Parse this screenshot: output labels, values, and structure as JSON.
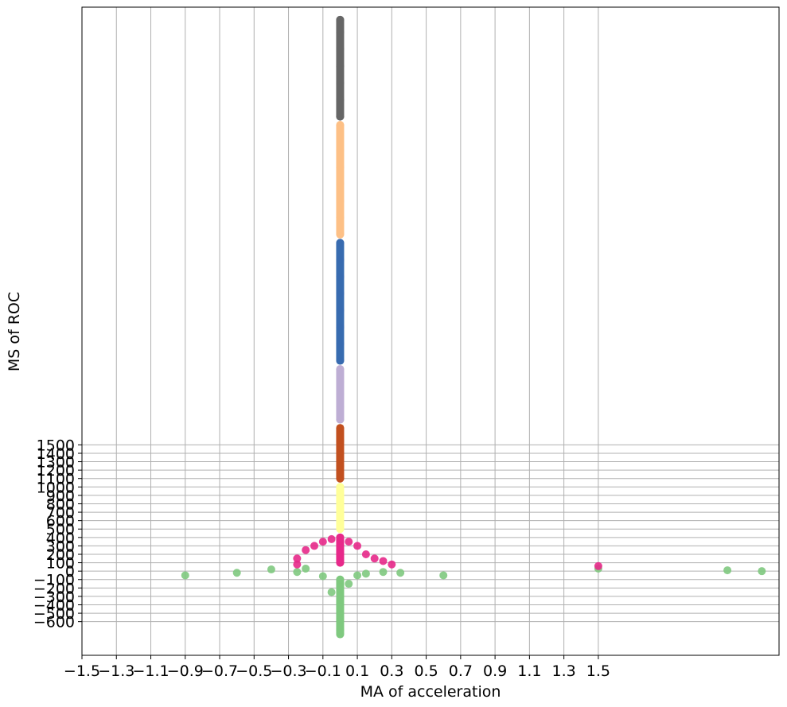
{
  "chart_data": {
    "type": "scatter",
    "title": "",
    "xlabel": "MA of acceleration",
    "ylabel": "MS of ROC",
    "xlim": [
      -1.5,
      2.55
    ],
    "ylim": [
      -1000,
      6700
    ],
    "grid": true,
    "x_ticks": [
      {
        "value": -1.5,
        "label": "−1.5"
      },
      {
        "value": -1.3,
        "label": "−1.3"
      },
      {
        "value": -1.1,
        "label": "−1.1"
      },
      {
        "value": -0.9,
        "label": "−0.9"
      },
      {
        "value": -0.7,
        "label": "−0.7"
      },
      {
        "value": -0.5,
        "label": "−0.5"
      },
      {
        "value": -0.3,
        "label": "−0.3"
      },
      {
        "value": -0.1,
        "label": "−0.1"
      },
      {
        "value": 0.1,
        "label": "0.1"
      },
      {
        "value": 0.3,
        "label": "0.3"
      },
      {
        "value": 0.5,
        "label": "0.5"
      },
      {
        "value": 0.7,
        "label": "0.7"
      },
      {
        "value": 0.9,
        "label": "0.9"
      },
      {
        "value": 1.1,
        "label": "1.1"
      },
      {
        "value": 1.3,
        "label": "1.3"
      },
      {
        "value": 1.5,
        "label": "1.5"
      }
    ],
    "y_ticks": [
      {
        "value": 1500,
        "label": "1500"
      },
      {
        "value": 1400,
        "label": "1400"
      },
      {
        "value": 1300,
        "label": "1300"
      },
      {
        "value": 1200,
        "label": "1200"
      },
      {
        "value": 1100,
        "label": "1100"
      },
      {
        "value": 1000,
        "label": "1000"
      },
      {
        "value": 900,
        "label": "900"
      },
      {
        "value": 800,
        "label": "800"
      },
      {
        "value": 700,
        "label": "700"
      },
      {
        "value": 600,
        "label": "600"
      },
      {
        "value": 500,
        "label": "500"
      },
      {
        "value": 400,
        "label": "400"
      },
      {
        "value": 300,
        "label": "300"
      },
      {
        "value": 200,
        "label": "200"
      },
      {
        "value": 100,
        "label": "100"
      },
      {
        "value": 0,
        "label": "0"
      },
      {
        "value": -100,
        "label": "−100"
      },
      {
        "value": -200,
        "label": "−200"
      },
      {
        "value": -300,
        "label": "−300"
      },
      {
        "value": -400,
        "label": "−400"
      },
      {
        "value": -500,
        "label": "−500"
      },
      {
        "value": -600,
        "label": "−600"
      }
    ],
    "series": [
      {
        "color": "#7fc97f",
        "points": [
          [
            -0.9,
            -50
          ],
          [
            -0.6,
            -20
          ],
          [
            -0.4,
            20
          ],
          [
            -0.2,
            30
          ],
          [
            0.15,
            -30
          ],
          [
            0.35,
            -20
          ],
          [
            0.6,
            -50
          ],
          [
            1.5,
            30
          ],
          [
            2.25,
            10
          ],
          [
            2.45,
            0
          ],
          [
            0,
            -100
          ],
          [
            0,
            -200
          ],
          [
            0,
            -300
          ],
          [
            0,
            -400
          ],
          [
            0,
            -500
          ],
          [
            0,
            -600
          ],
          [
            0,
            -700
          ],
          [
            0,
            -750
          ],
          [
            -0.25,
            -10
          ],
          [
            0.25,
            -10
          ],
          [
            -0.1,
            -60
          ],
          [
            0.1,
            -50
          ],
          [
            0.05,
            -150
          ],
          [
            -0.05,
            -250
          ]
        ]
      },
      {
        "color": "#e7298a",
        "points": [
          [
            0,
            100
          ],
          [
            0,
            200
          ],
          [
            0,
            300
          ],
          [
            0,
            400
          ],
          [
            -0.25,
            150
          ],
          [
            -0.2,
            250
          ],
          [
            -0.15,
            300
          ],
          [
            -0.1,
            350
          ],
          [
            -0.05,
            380
          ],
          [
            0.05,
            350
          ],
          [
            0.1,
            300
          ],
          [
            0.15,
            200
          ],
          [
            0.2,
            150
          ],
          [
            0.25,
            120
          ],
          [
            0.3,
            80
          ],
          [
            -0.25,
            80
          ],
          [
            1.5,
            60
          ]
        ]
      },
      {
        "color": "#ffff99",
        "points": [
          [
            0,
            500
          ],
          [
            0,
            600
          ],
          [
            0,
            700
          ],
          [
            0,
            800
          ],
          [
            0,
            900
          ],
          [
            0,
            1000
          ]
        ]
      },
      {
        "color": "#c2501f",
        "points": [
          [
            0,
            1100
          ],
          [
            0,
            1250
          ],
          [
            0,
            1400
          ],
          [
            0,
            1550
          ],
          [
            0,
            1700
          ]
        ]
      },
      {
        "color": "#beaed4",
        "points": [
          [
            0,
            1800
          ],
          [
            0,
            1950
          ],
          [
            0,
            2100
          ],
          [
            0,
            2250
          ],
          [
            0,
            2400
          ]
        ]
      },
      {
        "color": "#386cb0",
        "points": [
          [
            0,
            2500
          ],
          [
            0,
            2700
          ],
          [
            0,
            2900
          ],
          [
            0,
            3100
          ],
          [
            0,
            3300
          ],
          [
            0,
            3500
          ],
          [
            0,
            3700
          ],
          [
            0,
            3900
          ]
        ]
      },
      {
        "color": "#fdc086",
        "points": [
          [
            0,
            4000
          ],
          [
            0,
            4200
          ],
          [
            0,
            4400
          ],
          [
            0,
            4600
          ],
          [
            0,
            4800
          ],
          [
            0,
            5000
          ],
          [
            0,
            5300
          ]
        ]
      },
      {
        "color": "#666666",
        "points": [
          [
            0,
            5400
          ],
          [
            0,
            5600
          ],
          [
            0,
            5800
          ],
          [
            0,
            6000
          ],
          [
            0,
            6200
          ],
          [
            0,
            6400
          ],
          [
            0,
            6550
          ]
        ]
      }
    ]
  }
}
